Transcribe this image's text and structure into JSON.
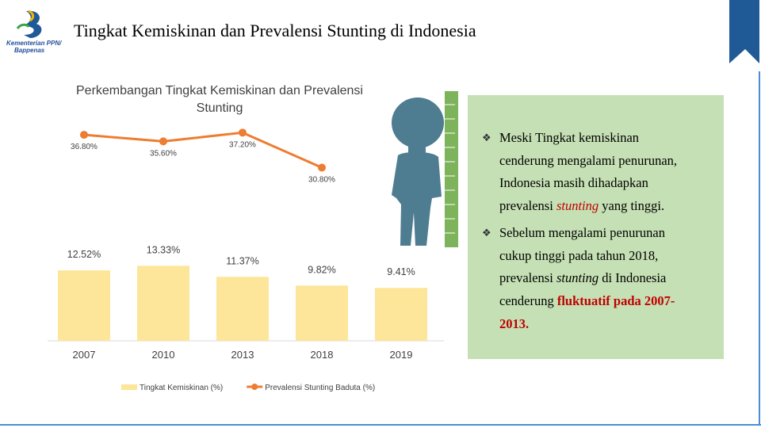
{
  "header": {
    "title": "Tingkat Kemiskinan dan Prevalensi Stunting di Indonesia",
    "logo_lines": [
      "Kementerian PPN/",
      "Bappenas"
    ]
  },
  "chart_data": {
    "type": "bar",
    "title": "Perkembangan Tingkat Kemiskinan dan Prevalensi Stunting",
    "categories": [
      "2007",
      "2010",
      "2013",
      "2018",
      "2019"
    ],
    "series": [
      {
        "name": "Tingkat Kemiskinan (%)",
        "type": "bar",
        "color": "#fde599",
        "values": [
          12.52,
          13.33,
          11.37,
          9.82,
          9.41
        ],
        "value_labels": [
          "12.52%",
          "13.33%",
          "11.37%",
          "9.82%",
          "9.41%"
        ]
      },
      {
        "name": "Prevalensi Stunting Baduta (%)",
        "type": "line",
        "color": "#ed7d31",
        "values": [
          36.8,
          35.6,
          37.2,
          30.8,
          null
        ],
        "value_labels": [
          "36.80%",
          "35.60%",
          "37.20%",
          "30.80%",
          null
        ]
      }
    ]
  },
  "note": {
    "bullets": [
      [
        [
          {
            "text": "Meski Tingkat kemiskinan",
            "style": "plain"
          }
        ],
        [
          {
            "text": "cenderung mengalami penurunan,",
            "style": "plain"
          }
        ],
        [
          {
            "text": "Indonesia masih dihadapkan",
            "style": "plain"
          }
        ],
        [
          {
            "text": "prevalensi ",
            "style": "plain"
          },
          {
            "text": "stunting",
            "style": "red-italic"
          },
          {
            "text": " yang tinggi.",
            "style": "plain"
          }
        ]
      ],
      [
        [
          {
            "text": "Sebelum mengalami penurunan",
            "style": "plain"
          }
        ],
        [
          {
            "text": "cukup tinggi pada tahun 2018,",
            "style": "plain"
          }
        ],
        [
          {
            "text": "prevalensi ",
            "style": "plain"
          },
          {
            "text": "stunting",
            "style": "italic"
          },
          {
            "text": " di Indonesia",
            "style": "plain"
          }
        ],
        [
          {
            "text": "cenderung ",
            "style": "plain"
          },
          {
            "text": "fluktuatif pada 2007-",
            "style": "red"
          }
        ],
        [
          {
            "text": "2013.",
            "style": "red"
          }
        ]
      ]
    ]
  }
}
